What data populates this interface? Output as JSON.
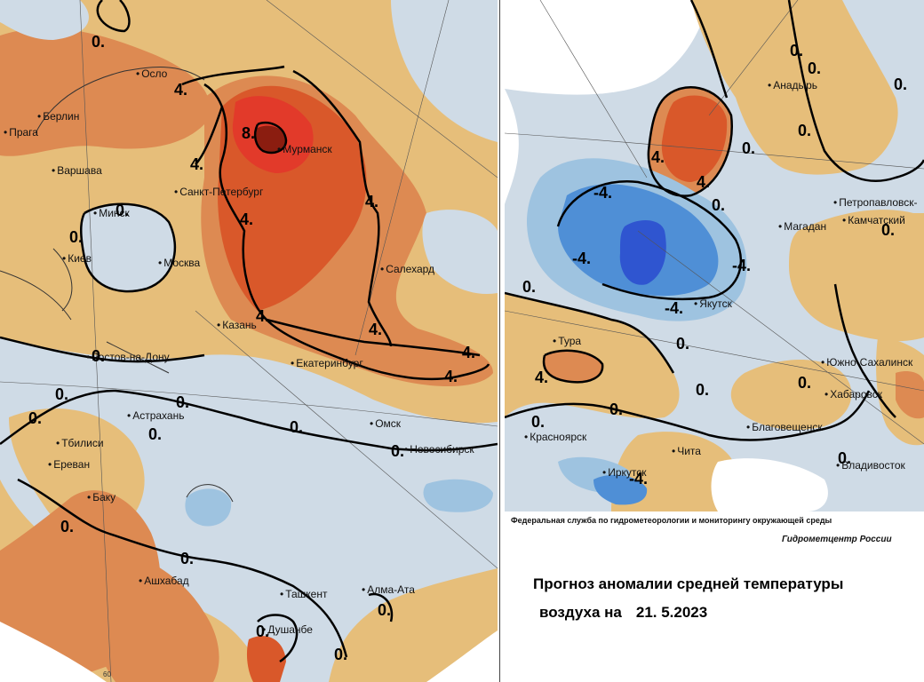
{
  "colors": {
    "anomaly_neg_weak": "#cfdbe6",
    "anomaly_neg_mid": "#9ec3e0",
    "anomaly_neg_strong": "#4f8fd6",
    "anomaly_neg_extreme": "#2f55d0",
    "anomaly_pos_weak": "#e6be7a",
    "anomaly_pos_mid": "#dd8a52",
    "anomaly_pos_strong": "#d9582a",
    "anomaly_pos_extreme": "#e23a2a",
    "anomaly_pos_max": "#8b1d10",
    "isoline": "#000000"
  },
  "footer": {
    "credit": "Федеральная служба по гидрометеорологии и мониторингу окружающей среды",
    "agency": "Гидрометцентр России"
  },
  "title": {
    "line1": "Прогноз аномалии средней температуры",
    "line2": "воздуха на",
    "date": "21. 5.2023"
  },
  "longitude_label": "60",
  "west_panel": {
    "cities": [
      "Осло",
      "Берлин",
      "Прага",
      "Варшава",
      "Минск",
      "Киев",
      "Москва",
      "Санкт-Петербург",
      "Мурманск",
      "Салехард",
      "Казань",
      "Ростов-на-Дону",
      "Екатеринбург",
      "Астрахань",
      "Тбилиси",
      "Ереван",
      "Баку",
      "Омск",
      "Новосибирск",
      "Ашхабад",
      "Ташкент",
      "Алма-Ата",
      "Душанбе"
    ],
    "isolines": [
      "0.",
      "4.",
      "8.",
      "4.",
      "0.",
      "0.",
      "4.",
      "4.",
      "4.",
      "4.",
      "4.",
      "4.",
      "0.",
      "0.",
      "0.",
      "0.",
      "0.",
      "0.",
      "0.",
      "0.",
      "0.",
      "0."
    ]
  },
  "east_panel": {
    "cities": [
      "Анадырь",
      "Петропавловск-",
      "Камчатский",
      "Магадан",
      "Якутск",
      "Тура",
      "Южно-Сахалинск",
      "Хабаровск",
      "Благовещенск",
      "Чита",
      "Красноярск",
      "Иркутск",
      "Владивосток"
    ],
    "isolines": [
      "0.",
      "0.",
      "0.",
      "0.",
      "4.",
      "0.",
      "4.",
      "-4.",
      "-4.",
      "-4.",
      "0.",
      "0.",
      "0.",
      "0.",
      "4.",
      "0.",
      "0.",
      "0.",
      "0.",
      "0.",
      "-4."
    ]
  }
}
